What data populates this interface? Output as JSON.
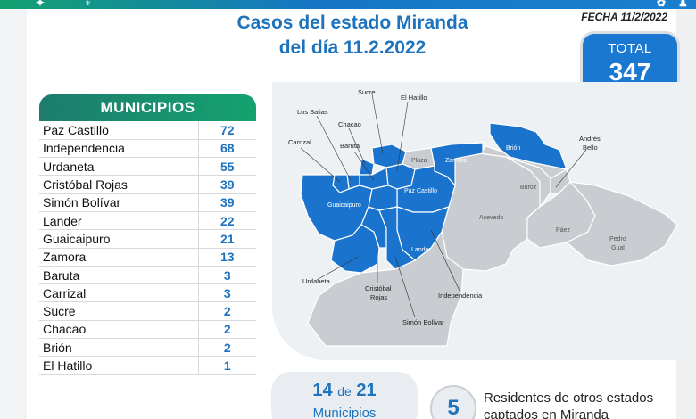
{
  "header": {
    "title_line1": "Casos del estado Miranda",
    "title_line2": "del día 11.2.2022",
    "fecha": "FECHA 11/2/2022"
  },
  "total": {
    "label": "TOTAL",
    "value": "347"
  },
  "municipios": {
    "header": "MUNICIPIOS",
    "rows": [
      {
        "name": "Paz Castillo",
        "cases": "72"
      },
      {
        "name": "Independencia",
        "cases": "68"
      },
      {
        "name": "Urdaneta",
        "cases": "55"
      },
      {
        "name": "Cristóbal Rojas",
        "cases": "39"
      },
      {
        "name": "Simón Bolívar",
        "cases": "39"
      },
      {
        "name": "Lander",
        "cases": "22"
      },
      {
        "name": "Guaicaipuro",
        "cases": "21"
      },
      {
        "name": "Zamora",
        "cases": "13"
      },
      {
        "name": "Baruta",
        "cases": "3"
      },
      {
        "name": "Carrizal",
        "cases": "3"
      },
      {
        "name": "Sucre",
        "cases": "2"
      },
      {
        "name": "Chacao",
        "cases": "2"
      },
      {
        "name": "Brión",
        "cases": "2"
      },
      {
        "name": "El Hatillo",
        "cases": "1"
      }
    ]
  },
  "map": {
    "labels": {
      "sucre": "Sucre",
      "el_hatillo": "El Hatillo",
      "los_salias": "Los Salias",
      "chacao": "Chacao",
      "carrizal": "Carrizal",
      "baruta": "Baruta",
      "plaza": "Plaza",
      "zamora": "Zamora",
      "brion": "Brión",
      "andres_line1": "Andrés",
      "andres_line2": "Bello",
      "buroz": "Buroz",
      "paz_castillo": "Paz Castillo",
      "guaicaipuro": "Guaicaipuro",
      "acevedo": "Acevedo",
      "paez": "Páez",
      "pedro_line1": "Pedro",
      "pedro_line2": "Gual",
      "lander": "Lander",
      "urdaneta": "Urdaneta",
      "cristobal_line1": "Cristóbal",
      "cristobal_line2": "Rojas",
      "independencia": "Independencia",
      "simon_bolivar": "Simón Bolívar"
    },
    "colors": {
      "affected": "#1a73cc",
      "unaffected": "#c9ccd0",
      "border": "#ffffff"
    }
  },
  "summary": {
    "affected": "14",
    "de": "de",
    "total_municipios": "21",
    "municipios_label": "Municipios",
    "residents_count": "5",
    "residents_text": "Residentes de otros estados captados en Miranda"
  }
}
